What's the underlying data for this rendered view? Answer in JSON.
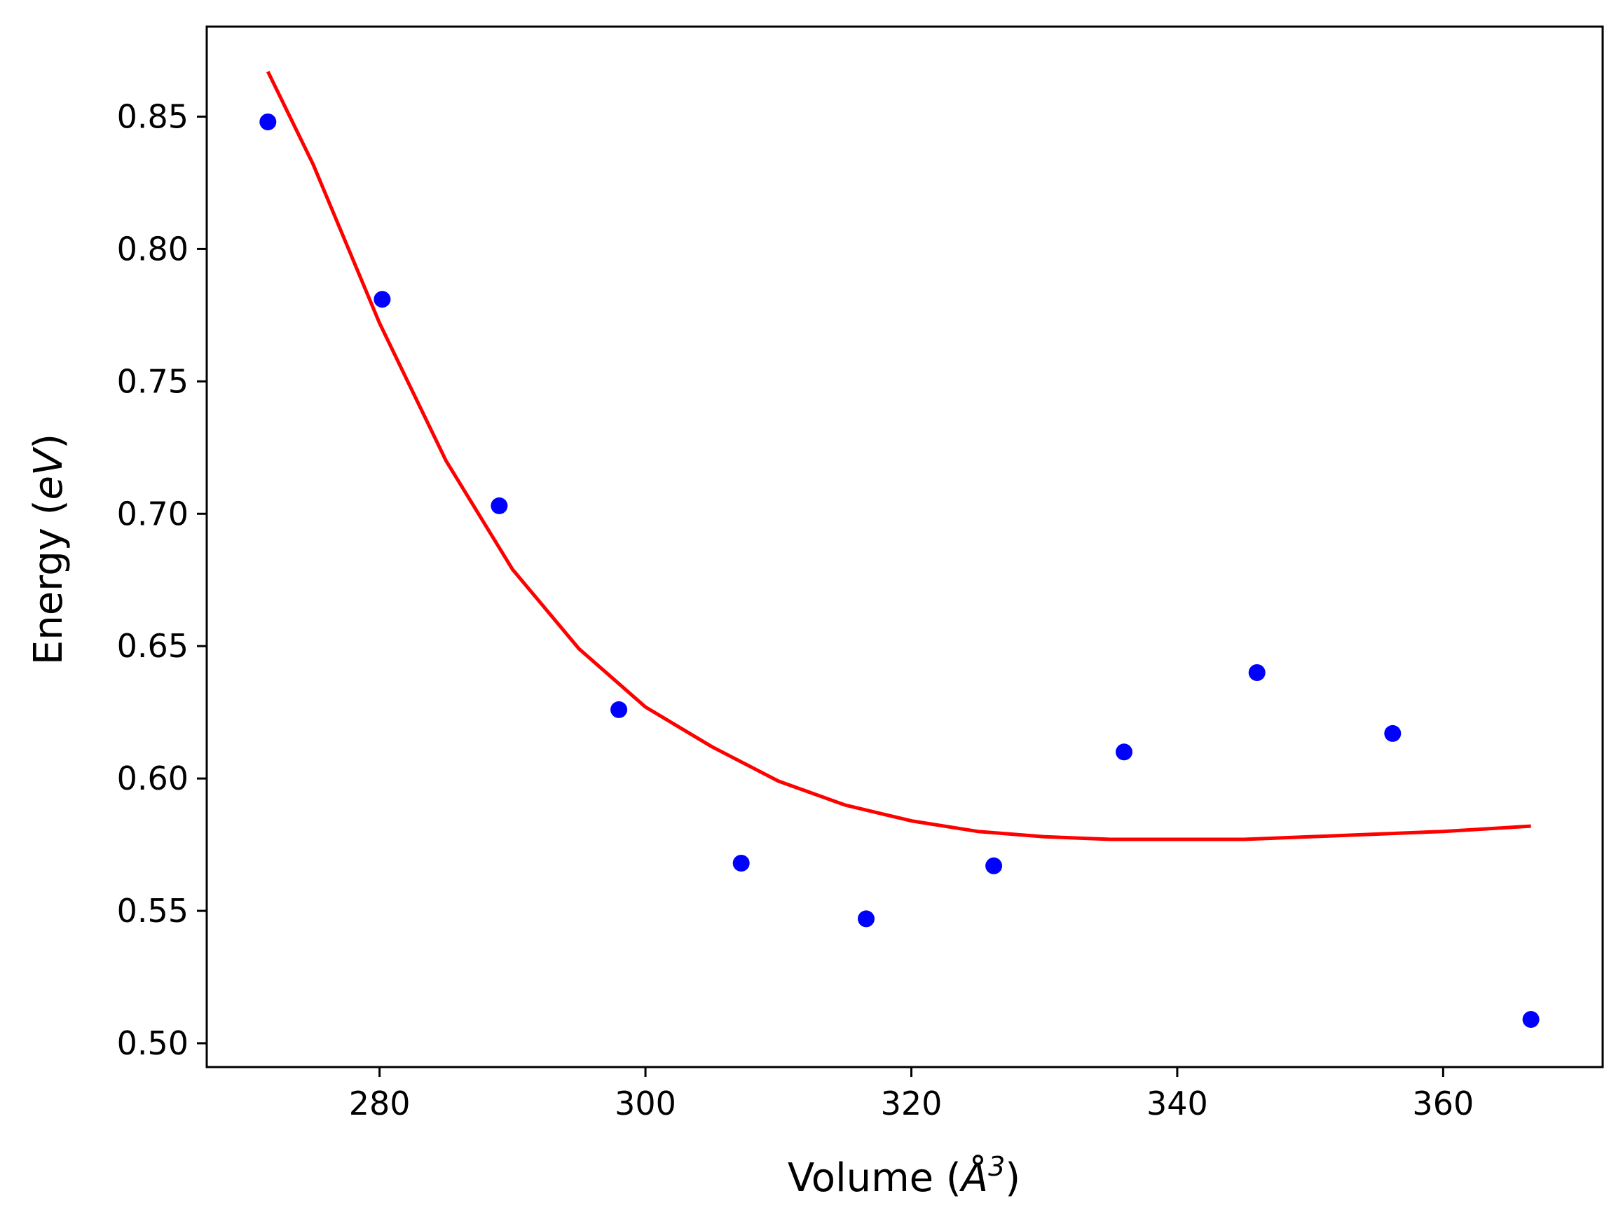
{
  "chart_data": {
    "type": "scatter",
    "xlabel_main": "Volume (",
    "xlabel_unit": "Å",
    "xlabel_exp": "3",
    "xlabel_close": ")",
    "ylabel_main": "Energy (",
    "ylabel_unit": "eV",
    "ylabel_close": ")",
    "xlim": [
      267,
      372
    ],
    "ylim": [
      0.491,
      0.884
    ],
    "xticks": [
      280,
      300,
      320,
      340,
      360
    ],
    "yticks": [
      0.5,
      0.55,
      0.6,
      0.65,
      0.7,
      0.75,
      0.8,
      0.85
    ],
    "x_tick_labels": [
      "280",
      "300",
      "320",
      "340",
      "360"
    ],
    "y_tick_labels": [
      "0.50",
      "0.55",
      "0.60",
      "0.65",
      "0.70",
      "0.75",
      "0.80",
      "0.85"
    ],
    "grid": false,
    "series": [
      {
        "type": "scatter",
        "color": "#0000ff",
        "x": [
          271.6,
          280.2,
          289.0,
          298.0,
          307.2,
          316.6,
          326.2,
          336.0,
          346.0,
          356.2,
          366.6
        ],
        "y": [
          0.848,
          0.781,
          0.703,
          0.626,
          0.568,
          0.547,
          0.567,
          0.61,
          0.64,
          0.617,
          0.509
        ]
      },
      {
        "type": "line",
        "color": "#ff0000",
        "x": [
          271.6,
          275,
          280,
          285,
          290,
          295,
          300,
          305,
          310,
          315,
          320,
          325,
          330,
          335,
          340,
          345,
          350,
          355,
          360,
          366.6
        ],
        "y": [
          0.867,
          0.832,
          0.772,
          0.72,
          0.679,
          0.649,
          0.627,
          0.612,
          0.599,
          0.59,
          0.584,
          0.58,
          0.578,
          0.577,
          0.577,
          0.577,
          0.578,
          0.579,
          0.58,
          0.582
        ]
      }
    ]
  }
}
